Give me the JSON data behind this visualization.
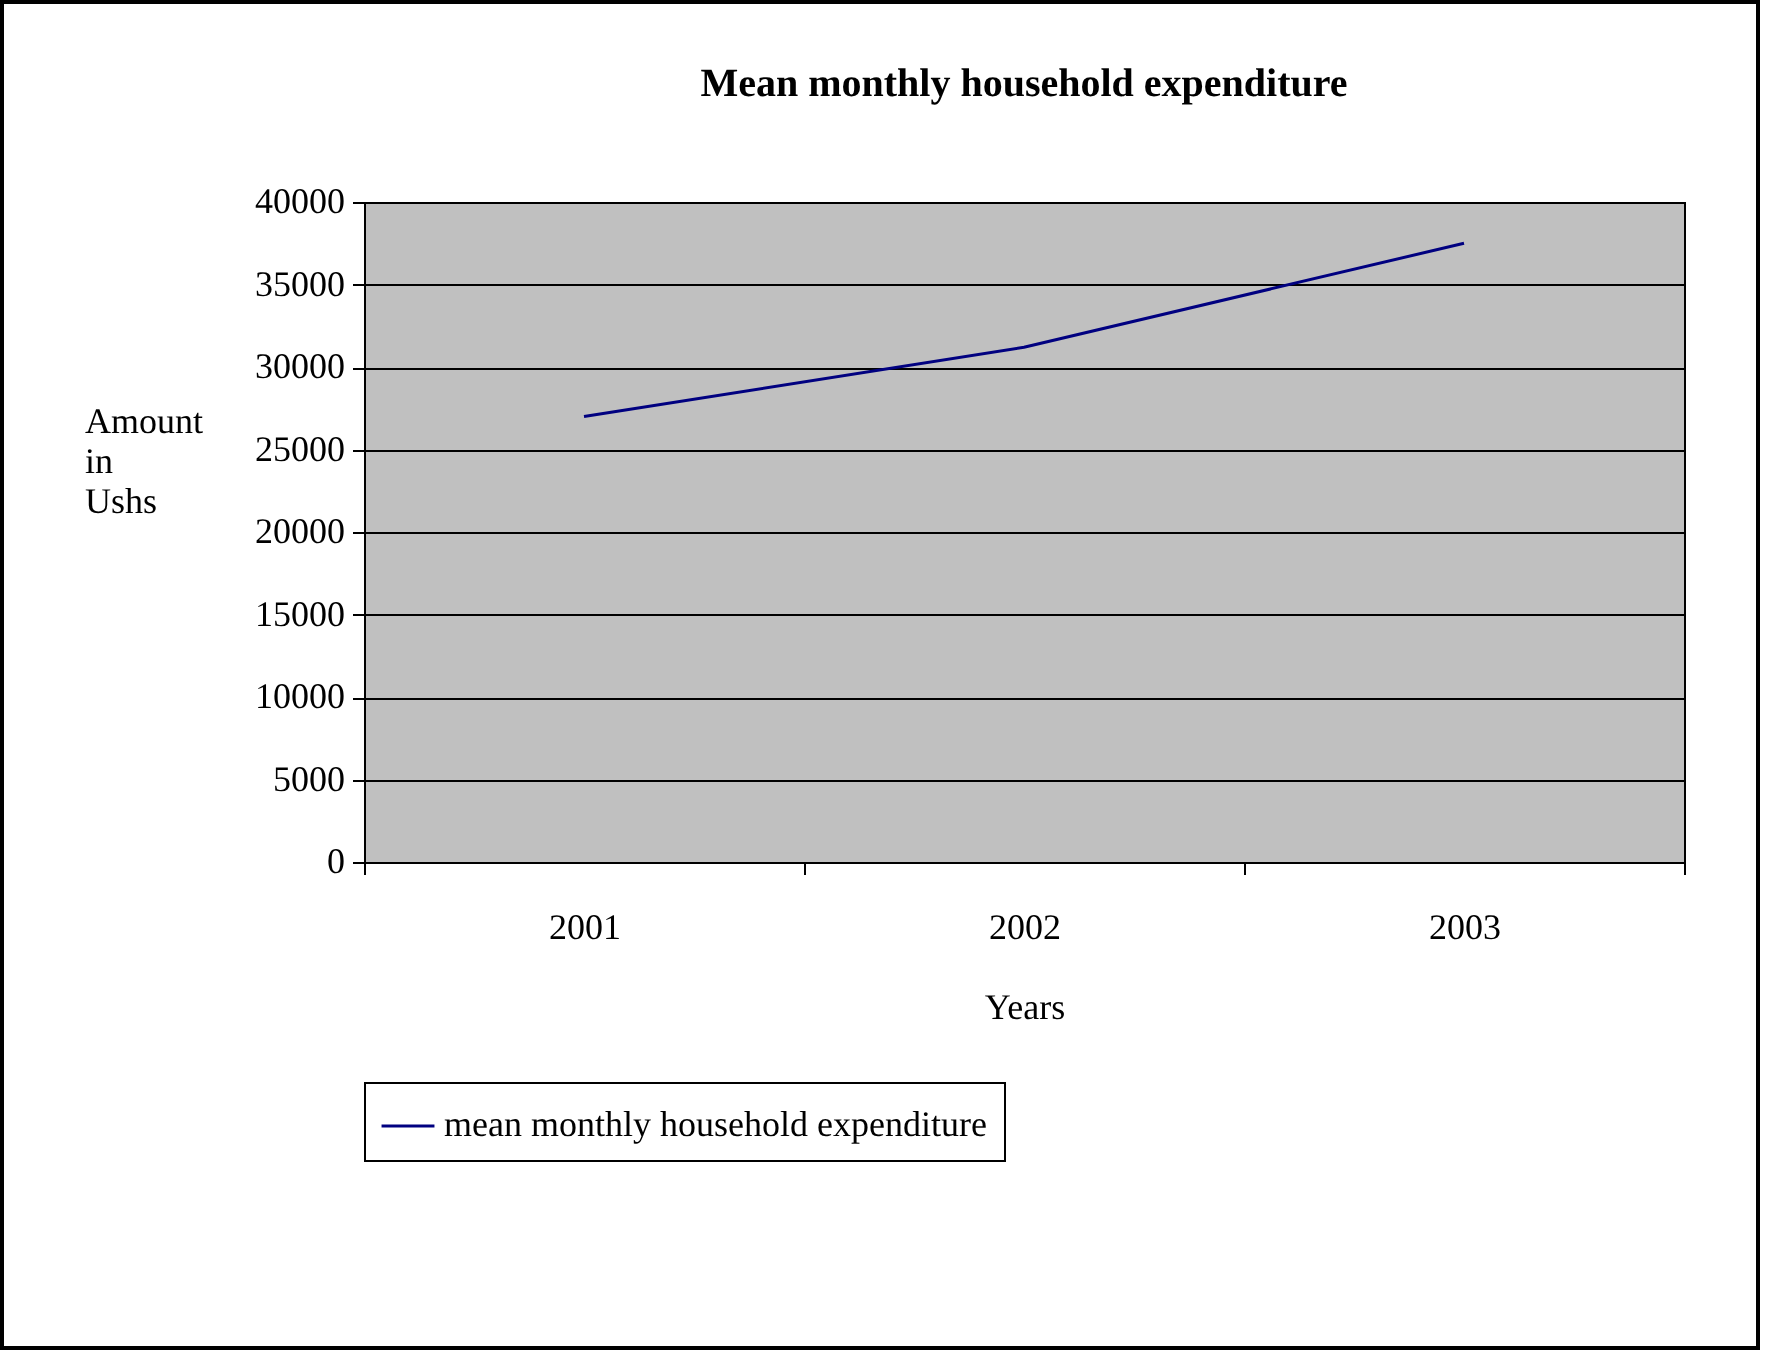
{
  "chart_data": {
    "type": "line",
    "title": "Mean monthly household expenditure",
    "xlabel": "Years",
    "ylabel": "Amount in Ushs",
    "categories": [
      "2001",
      "2002",
      "2003"
    ],
    "series": [
      {
        "name": "mean monthly household expenditure",
        "color": "#000080",
        "values": [
          27000,
          31200,
          37500
        ]
      }
    ],
    "ylim": [
      0,
      40000
    ],
    "yticks": [
      0,
      5000,
      10000,
      15000,
      20000,
      25000,
      30000,
      35000,
      40000
    ],
    "grid": "y",
    "legend": "bottom",
    "marker": "none"
  }
}
